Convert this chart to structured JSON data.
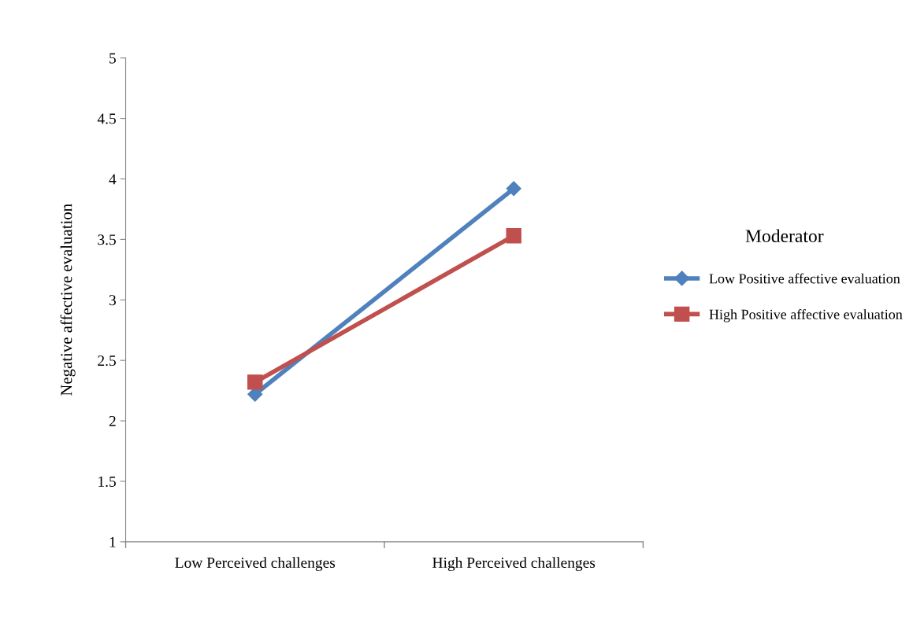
{
  "chart_data": {
    "type": "line",
    "ylabel": "Negative affective evaluation",
    "legend_title": "Moderator",
    "categories": [
      "Low Perceived challenges",
      "High Perceived challenges"
    ],
    "series": [
      {
        "name": "Low Positive affective evaluation",
        "color": "#4f81bd",
        "values": [
          2.22,
          3.92
        ],
        "marker": "diamond"
      },
      {
        "name": "High Positive affective evaluation",
        "color": "#c0504d",
        "values": [
          2.32,
          3.53
        ],
        "marker": "square"
      }
    ],
    "ylim": [
      1,
      5
    ],
    "yticks": [
      1,
      1.5,
      2,
      2.5,
      3,
      3.5,
      4,
      4.5,
      5
    ],
    "grid": false,
    "legend": "right",
    "line_style": "solid"
  }
}
